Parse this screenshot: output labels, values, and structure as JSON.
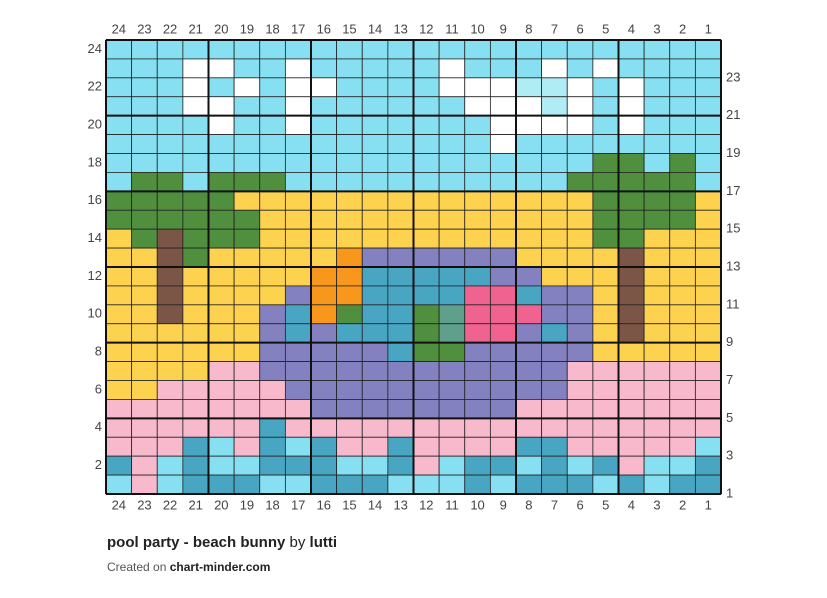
{
  "chart": {
    "columns": [
      24,
      23,
      22,
      21,
      20,
      19,
      18,
      17,
      16,
      15,
      14,
      13,
      12,
      11,
      10,
      9,
      8,
      7,
      6,
      5,
      4,
      3,
      2,
      1
    ],
    "rows": [
      24,
      23,
      22,
      21,
      20,
      19,
      18,
      17,
      16,
      15,
      14,
      13,
      12,
      11,
      10,
      9,
      8,
      7,
      6,
      5,
      4,
      3,
      2,
      1
    ],
    "palette": {
      "L": "#87e0f2",
      "W": "#ffffff",
      "P": "#b0ecf3",
      "G": "#4f8f3e",
      "Y": "#fdd24f",
      "B": "#7b5545",
      "O": "#f7981d",
      "V": "#8481c0",
      "T": "#48a6c3",
      "K": "#f0628f",
      "S": "#5f9f8b",
      "R": "#f8b9cd"
    },
    "cells": [
      "LLLLLLLLLLLLLLLLLLLLLLLL",
      "LLLWWLLWLLLLLWLLLWLWLLLL",
      "LLLWLWLWWLLLLWWWPPWLWLLL",
      "LLLWWLLWLLLLLLWWWPWLWLLL",
      "LLLLWLLWLLLLLLLWWWWLWLLL",
      "LLLLLLLLLLLLLLLWLLLLLLLL",
      "LLLLLLLLLLLLLLLLLLLGGLGL",
      "LGGLGGGLLLLLLLLLLLGGGGGL",
      "GGGGGYYYYYYYYYYYYYYGGGGY",
      "GGGGGGYYYYYYYYYYYYYGGGGY",
      "YGBGGGYYYYYYYYYYYYYGGYYY",
      "YYBGYYYYYOVVVVVVYYYYBYYY",
      "YYBYYYYYOOTTTTTVVYYYBYYY",
      "YYBYYYYVOOTTTTKKTVVYBYYY",
      "YYBYYYVTOGTTGSKKKVVYBYYY",
      "YYYYYYVTVTTTGSKKVTVYBYYY",
      "YYYYYYVVVVVTGGVVVVVYYYYY",
      "YYYYRRVVVVVVVVVVVVRRRRRR",
      "YYRRRRRVVVVVVVVVVVRRRRRR",
      "RRRRRRRRVVVVVVVVRRRRRRRR",
      "RRRRRRTRRRRRRRRRRRRRRRRR",
      "RRRTLRTLTRRTRRRRTTRRRRRL",
      "TRLTLLTTTLLTRLTTLTLTRLLT",
      "LRLTTTLLTTTLLLTLTTTLTLTT"
    ]
  },
  "footer": {
    "title": "pool party - beach bunny",
    "by": "by",
    "author": "lutti",
    "created": "Created on",
    "site": "chart-minder.com"
  }
}
